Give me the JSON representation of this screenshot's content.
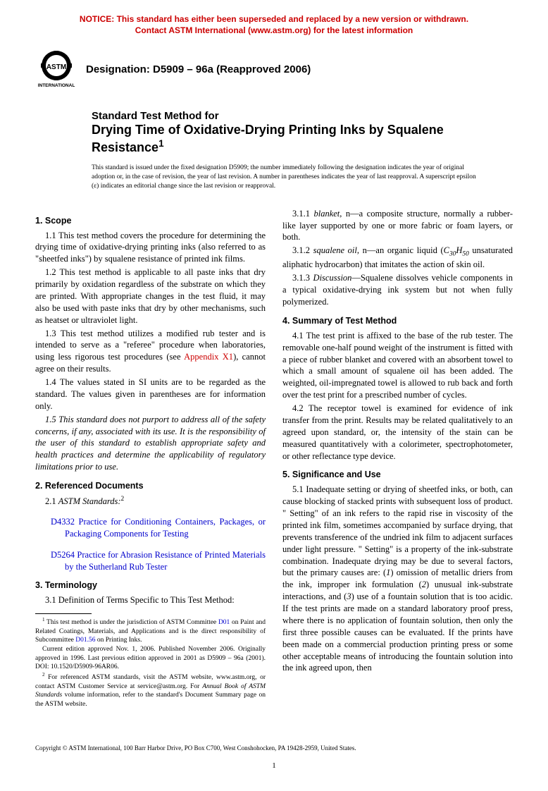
{
  "notice": {
    "line1": "NOTICE: This standard has either been superseded and replaced by a new version or withdrawn.",
    "line2": "Contact ASTM International (www.astm.org) for the latest information",
    "color": "#cc0000"
  },
  "logo": {
    "text_top": "ASTM",
    "text_bottom": "INTERNATIONAL"
  },
  "designation": "Designation: D5909 – 96a (Reapproved 2006)",
  "title": {
    "pre": "Standard Test Method for",
    "main": "Drying Time of Oxidative-Drying Printing Inks by Squalene Resistance",
    "sup": "1"
  },
  "issued_note": "This standard is issued under the fixed designation D5909; the number immediately following the designation indicates the year of original adoption or, in the case of revision, the year of last revision. A number in parentheses indicates the year of last reapproval. A superscript epsilon (ε) indicates an editorial change since the last revision or reapproval.",
  "sections": {
    "s1": {
      "heading": "1. Scope"
    },
    "s2": {
      "heading": "2. Referenced Documents"
    },
    "s3": {
      "heading": "3. Terminology"
    },
    "s4": {
      "heading": "4. Summary of Test Method"
    },
    "s5": {
      "heading": "5. Significance and Use"
    }
  },
  "p1_1": "1.1 This test method covers the procedure for determining the drying time of oxidative-drying printing inks (also referred to as \"sheetfed inks\") by squalene resistance of printed ink films.",
  "p1_2": "1.2 This test method is applicable to all paste inks that dry primarily by oxidation regardless of the substrate on which they are printed. With appropriate changes in the test fluid, it may also be used with paste inks that dry by other mechanisms, such as heatset or ultraviolet light.",
  "p1_3a": "1.3 This test method utilizes a modified rub tester and is intended to serve as a \"referee\" procedure when laboratories, using less rigorous test procedures (see ",
  "p1_3_link": "Appendix X1",
  "p1_3b": "), cannot agree on their results.",
  "p1_4": "1.4 The values stated in SI units are to be regarded as the standard. The values given in parentheses are for information only.",
  "p1_5": "1.5 This standard does not purport to address all of the safety concerns, if any, associated with its use. It is the responsibility of the user of this standard to establish appropriate safety and health practices and determine the applicability of regulatory limitations prior to use.",
  "p2_1": "2.1 ASTM Standards:",
  "p2_1_sup": "2",
  "ref1": "D4332 Practice for Conditioning Containers, Packages, or Packaging Components for Testing",
  "ref2": "D5264 Practice for Abrasion Resistance of Printed Materials by the Sutherland Rub Tester",
  "p3_1": "3.1 Definition of Terms Specific to This Test Method:",
  "p3_1_1a": "3.1.1 ",
  "p3_1_1_term": "blanket",
  "p3_1_1b": ", n—a composite structure, normally a rubber-like layer supported by one or more fabric or foam layers, or both.",
  "p3_1_2a": "3.1.2 ",
  "p3_1_2_term": "squalene oil",
  "p3_1_2b": ", n—an organic liquid (",
  "p3_1_2c": " unsaturated aliphatic hydrocarbon) that imitates the action of skin oil.",
  "p3_1_3a": "3.1.3 ",
  "p3_1_3_term": "Discussion",
  "p3_1_3b": "—Squalene dissolves vehicle components in a typical oxidative-drying ink system but not when fully polymerized.",
  "p4_1": "4.1 The test print is affixed to the base of the rub tester. The removable one-half pound weight of the instrument is fitted with a piece of rubber blanket and covered with an absorbent towel to which a small amount of squalene oil has been added. The weighted, oil-impregnated towel is allowed to rub back and forth over the test print for a prescribed number of cycles.",
  "p4_2": "4.2 The receptor towel is examined for evidence of ink transfer from the print. Results may be related qualitatively to an agreed upon standard, or, the intensity of the stain can be measured quantitatively with a colorimeter, spectrophotometer, or other reflectance type device.",
  "p5_1a": "5.1 Inadequate setting or drying of sheetfed inks, or both, can cause blocking of stacked prints with subsequent loss of product. \" Setting\" of an ink refers to the rapid rise in viscosity of the printed ink film, sometimes accompanied by surface drying, that prevents transference of the undried ink film to adjacent surfaces under light pressure. \" Setting\" is a property of the ink-substrate combination. Inadequate drying may be due to several factors, but the primary causes are: (",
  "p5_1_i1": "1",
  "p5_1b": ") omission of metallic driers from the ink, improper ink formulation (",
  "p5_1_i2": "2",
  "p5_1c": ") unusual ink-substrate interactions, and (",
  "p5_1_i3": "3",
  "p5_1d": ") use of a fountain solution that is too acidic. If the test prints are made on a standard laboratory proof press, where there is no application of fountain solution, then only the first three possible causes can be evaluated. If the prints have been made on a commercial production printing press or some other acceptable means of introducing the fountain solution into the ink agreed upon, then",
  "fn1a": " This test method is under the jurisdiction of ASTM Committee ",
  "fn1_link1": "D01",
  "fn1b": " on Paint and Related Coatings, Materials, and Applications and is the direct responsibility of Subcommittee ",
  "fn1_link2": "D01.56",
  "fn1c": " on Printing Inks.",
  "fn1_p2": "Current edition approved Nov. 1, 2006. Published November 2006. Originally approved in 1996. Last previous edition approved in 2001 as D5909 – 96a (2001). DOI: 10.1520/D5909-96AR06.",
  "fn2a": " For referenced ASTM standards, visit the ASTM website, www.astm.org, or contact ASTM Customer Service at service@astm.org. For ",
  "fn2_ital": "Annual Book of ASTM Standards",
  "fn2b": " volume information, refer to the standard's Document Summary page on the ASTM website.",
  "copyright": "Copyright © ASTM International, 100 Barr Harbor Drive, PO Box C700, West Conshohocken, PA 19428-2959, United States.",
  "page_num": "1",
  "colors": {
    "notice": "#cc0000",
    "link_blue": "#0000cc",
    "link_red": "#cc0000",
    "text": "#000000",
    "bg": "#ffffff"
  },
  "typography": {
    "body_font": "Times New Roman",
    "heading_font": "Arial",
    "body_size_pt": 10,
    "heading_size_pt": 10,
    "title_size_pt": 14,
    "notice_size_pt": 9,
    "footnote_size_pt": 7.5
  }
}
